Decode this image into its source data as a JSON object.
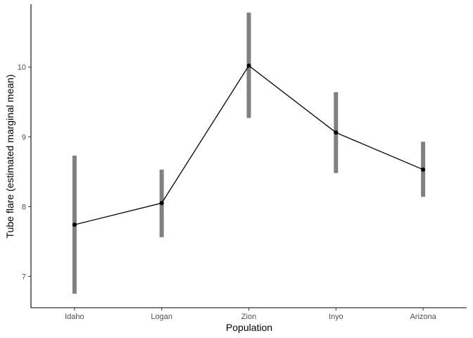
{
  "chart_data": {
    "type": "line",
    "title": "",
    "xlabel": "Population",
    "ylabel": "Tube flare (estimated marginal mean)",
    "categories": [
      "Idaho",
      "Logan",
      "Zion",
      "Inyo",
      "Arizona"
    ],
    "series": [
      {
        "values": [
          7.74,
          8.05,
          10.02,
          9.06,
          8.53
        ],
        "lower": [
          6.75,
          7.56,
          9.27,
          8.48,
          8.14
        ],
        "upper": [
          8.73,
          8.53,
          10.78,
          9.64,
          8.93
        ]
      }
    ],
    "ylim": [
      6.55,
      10.9
    ],
    "yticks": [
      7,
      8,
      9,
      10
    ],
    "grid": false,
    "legend": "none",
    "colors": {
      "line": "#000000",
      "point": "#000000",
      "error_bar": "#808080"
    }
  }
}
